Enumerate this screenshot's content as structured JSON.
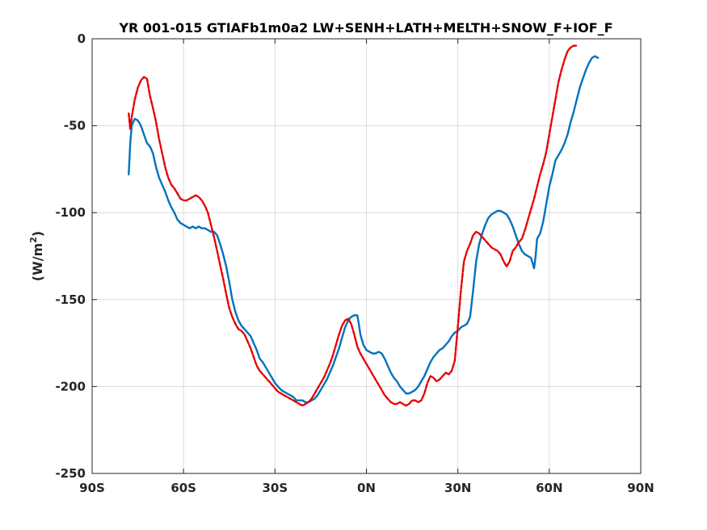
{
  "chart_data": {
    "type": "line",
    "title": "YR 001-015 GTIAFb1m0a2 LW+SENH+LATH+MELTH+SNOW_F+IOF_F",
    "ylabel_main": "(W/m",
    "ylabel_sup": "2",
    "ylabel_end": ")",
    "xlim": [
      -90,
      90
    ],
    "ylim": [
      -250,
      0
    ],
    "xticks": [
      {
        "value": -90,
        "label": "90S"
      },
      {
        "value": -60,
        "label": "60S"
      },
      {
        "value": -30,
        "label": "30S"
      },
      {
        "value": 0,
        "label": "0N"
      },
      {
        "value": 30,
        "label": "30N"
      },
      {
        "value": 60,
        "label": "60N"
      },
      {
        "value": 90,
        "label": "90N"
      }
    ],
    "yticks": [
      {
        "value": 0,
        "label": "0"
      },
      {
        "value": -50,
        "label": "-50"
      },
      {
        "value": -100,
        "label": "-100"
      },
      {
        "value": -150,
        "label": "-150"
      },
      {
        "value": -200,
        "label": "-200"
      },
      {
        "value": -250,
        "label": "-250"
      }
    ],
    "grid": true,
    "series": [
      {
        "color": "#0072bd",
        "style": "solid",
        "points": [
          [
            -78,
            -78
          ],
          [
            -77.5,
            -60
          ],
          [
            -77,
            -50
          ],
          [
            -76,
            -46
          ],
          [
            -75,
            -47
          ],
          [
            -74,
            -50
          ],
          [
            -73,
            -55
          ],
          [
            -72,
            -60
          ],
          [
            -71,
            -62
          ],
          [
            -70,
            -66
          ],
          [
            -69,
            -74
          ],
          [
            -68,
            -80
          ],
          [
            -67,
            -84
          ],
          [
            -66,
            -88
          ],
          [
            -65,
            -93
          ],
          [
            -64,
            -97
          ],
          [
            -63,
            -100
          ],
          [
            -62,
            -104
          ],
          [
            -61,
            -106
          ],
          [
            -60,
            -107
          ],
          [
            -59,
            -108
          ],
          [
            -58,
            -109
          ],
          [
            -57,
            -108
          ],
          [
            -56,
            -109
          ],
          [
            -55,
            -108
          ],
          [
            -54,
            -109
          ],
          [
            -53,
            -109
          ],
          [
            -52,
            -110
          ],
          [
            -51,
            -111
          ],
          [
            -50,
            -111
          ],
          [
            -49,
            -113
          ],
          [
            -48,
            -118
          ],
          [
            -47,
            -124
          ],
          [
            -46,
            -131
          ],
          [
            -45,
            -140
          ],
          [
            -44,
            -150
          ],
          [
            -43,
            -157
          ],
          [
            -42,
            -162
          ],
          [
            -41,
            -165
          ],
          [
            -40,
            -167
          ],
          [
            -39,
            -169
          ],
          [
            -38,
            -171
          ],
          [
            -37,
            -175
          ],
          [
            -36,
            -179
          ],
          [
            -35,
            -184
          ],
          [
            -34,
            -186
          ],
          [
            -33,
            -189
          ],
          [
            -32,
            -192
          ],
          [
            -31,
            -195
          ],
          [
            -30,
            -198
          ],
          [
            -29,
            -200
          ],
          [
            -28,
            -202
          ],
          [
            -27,
            -203
          ],
          [
            -26,
            -204
          ],
          [
            -25,
            -205
          ],
          [
            -24,
            -206
          ],
          [
            -23,
            -208
          ],
          [
            -22,
            -208
          ],
          [
            -21,
            -208
          ],
          [
            -20,
            -209
          ],
          [
            -19,
            -209
          ],
          [
            -18,
            -208
          ],
          [
            -17,
            -207
          ],
          [
            -16,
            -205
          ],
          [
            -15,
            -202
          ],
          [
            -14,
            -199
          ],
          [
            -13,
            -196
          ],
          [
            -12,
            -192
          ],
          [
            -11,
            -188
          ],
          [
            -10,
            -183
          ],
          [
            -9,
            -178
          ],
          [
            -8,
            -172
          ],
          [
            -7,
            -166
          ],
          [
            -6,
            -162
          ],
          [
            -5,
            -160
          ],
          [
            -4,
            -159
          ],
          [
            -3,
            -159
          ],
          [
            -2.5,
            -164
          ],
          [
            -2,
            -170
          ],
          [
            -1,
            -176
          ],
          [
            0,
            -179
          ],
          [
            1,
            -180
          ],
          [
            2,
            -181
          ],
          [
            3,
            -181
          ],
          [
            4,
            -180
          ],
          [
            5,
            -181
          ],
          [
            6,
            -184
          ],
          [
            7,
            -188
          ],
          [
            8,
            -192
          ],
          [
            9,
            -195
          ],
          [
            10,
            -197
          ],
          [
            11,
            -200
          ],
          [
            12,
            -202
          ],
          [
            13,
            -204
          ],
          [
            14,
            -204
          ],
          [
            15,
            -203
          ],
          [
            16,
            -202
          ],
          [
            17,
            -200
          ],
          [
            18,
            -197
          ],
          [
            19,
            -194
          ],
          [
            20,
            -190
          ],
          [
            21,
            -186
          ],
          [
            22,
            -183
          ],
          [
            23,
            -181
          ],
          [
            24,
            -179
          ],
          [
            25,
            -178
          ],
          [
            26,
            -176
          ],
          [
            27,
            -174
          ],
          [
            28,
            -171
          ],
          [
            29,
            -169
          ],
          [
            30,
            -168
          ],
          [
            31,
            -166
          ],
          [
            32,
            -165
          ],
          [
            33,
            -164
          ],
          [
            34,
            -160
          ],
          [
            35,
            -145
          ],
          [
            36,
            -128
          ],
          [
            37,
            -118
          ],
          [
            38,
            -112
          ],
          [
            39,
            -107
          ],
          [
            40,
            -103
          ],
          [
            41,
            -101
          ],
          [
            42,
            -100
          ],
          [
            43,
            -99
          ],
          [
            44,
            -99
          ],
          [
            45,
            -100
          ],
          [
            46,
            -101
          ],
          [
            47,
            -104
          ],
          [
            48,
            -108
          ],
          [
            49,
            -113
          ],
          [
            50,
            -118
          ],
          [
            51,
            -122
          ],
          [
            52,
            -124
          ],
          [
            53,
            -125
          ],
          [
            54,
            -126
          ],
          [
            55,
            -132
          ],
          [
            55.5,
            -125
          ],
          [
            56,
            -115
          ],
          [
            57,
            -112
          ],
          [
            58,
            -105
          ],
          [
            59,
            -95
          ],
          [
            60,
            -85
          ],
          [
            61,
            -78
          ],
          [
            62,
            -70
          ],
          [
            63,
            -67
          ],
          [
            64,
            -64
          ],
          [
            65,
            -60
          ],
          [
            66,
            -55
          ],
          [
            67,
            -48
          ],
          [
            68,
            -42
          ],
          [
            69,
            -35
          ],
          [
            70,
            -28
          ],
          [
            71,
            -23
          ],
          [
            72,
            -18
          ],
          [
            73,
            -14
          ],
          [
            74,
            -11
          ],
          [
            75,
            -10
          ],
          [
            76,
            -11
          ]
        ]
      },
      {
        "color": "#e60000",
        "style": "dashed",
        "points": [
          [
            -78,
            -43
          ],
          [
            -77.5,
            -52
          ],
          [
            -77,
            -45
          ],
          [
            -76,
            -35
          ],
          [
            -75,
            -28
          ],
          [
            -74,
            -24
          ],
          [
            -73,
            -22
          ],
          [
            -72,
            -23
          ],
          [
            -71,
            -33
          ],
          [
            -70,
            -40
          ],
          [
            -69,
            -48
          ],
          [
            -68,
            -58
          ],
          [
            -67,
            -66
          ],
          [
            -66,
            -74
          ],
          [
            -65,
            -80
          ],
          [
            -64,
            -84
          ],
          [
            -63,
            -86
          ],
          [
            -62,
            -89
          ],
          [
            -61,
            -92
          ],
          [
            -60,
            -93
          ],
          [
            -59,
            -93
          ],
          [
            -58,
            -92
          ],
          [
            -57,
            -91
          ],
          [
            -56,
            -90
          ],
          [
            -55,
            -91
          ],
          [
            -54,
            -93
          ],
          [
            -53,
            -96
          ],
          [
            -52,
            -100
          ],
          [
            -51,
            -107
          ],
          [
            -50,
            -114
          ],
          [
            -49,
            -122
          ],
          [
            -48,
            -130
          ],
          [
            -47,
            -138
          ],
          [
            -46,
            -147
          ],
          [
            -45,
            -155
          ],
          [
            -44,
            -160
          ],
          [
            -43,
            -164
          ],
          [
            -42,
            -167
          ],
          [
            -41,
            -168
          ],
          [
            -40,
            -170
          ],
          [
            -39,
            -174
          ],
          [
            -38,
            -178
          ],
          [
            -37,
            -183
          ],
          [
            -36,
            -188
          ],
          [
            -35,
            -191
          ],
          [
            -34,
            -193
          ],
          [
            -33,
            -195
          ],
          [
            -32,
            -197
          ],
          [
            -31,
            -199
          ],
          [
            -30,
            -201
          ],
          [
            -29,
            -203
          ],
          [
            -28,
            -204
          ],
          [
            -27,
            -205
          ],
          [
            -26,
            -206
          ],
          [
            -25,
            -207
          ],
          [
            -24,
            -208
          ],
          [
            -23,
            -209
          ],
          [
            -22,
            -210
          ],
          [
            -21,
            -211
          ],
          [
            -20,
            -210
          ],
          [
            -19,
            -209
          ],
          [
            -18,
            -207
          ],
          [
            -17,
            -204
          ],
          [
            -16,
            -201
          ],
          [
            -15,
            -198
          ],
          [
            -14,
            -195
          ],
          [
            -13,
            -191
          ],
          [
            -12,
            -187
          ],
          [
            -11,
            -182
          ],
          [
            -10,
            -176
          ],
          [
            -9,
            -170
          ],
          [
            -8,
            -165
          ],
          [
            -7,
            -162
          ],
          [
            -6,
            -161
          ],
          [
            -5,
            -164
          ],
          [
            -4,
            -170
          ],
          [
            -3,
            -177
          ],
          [
            -2,
            -181
          ],
          [
            -1,
            -184
          ],
          [
            0,
            -187
          ],
          [
            1,
            -190
          ],
          [
            2,
            -193
          ],
          [
            3,
            -196
          ],
          [
            4,
            -199
          ],
          [
            5,
            -202
          ],
          [
            6,
            -205
          ],
          [
            7,
            -207
          ],
          [
            8,
            -209
          ],
          [
            9,
            -210
          ],
          [
            10,
            -210
          ],
          [
            11,
            -209
          ],
          [
            12,
            -210
          ],
          [
            13,
            -211
          ],
          [
            14,
            -210
          ],
          [
            15,
            -208
          ],
          [
            16,
            -208
          ],
          [
            17,
            -209
          ],
          [
            18,
            -208
          ],
          [
            19,
            -204
          ],
          [
            20,
            -198
          ],
          [
            21,
            -194
          ],
          [
            22,
            -195
          ],
          [
            23,
            -197
          ],
          [
            24,
            -196
          ],
          [
            25,
            -194
          ],
          [
            26,
            -192
          ],
          [
            27,
            -193
          ],
          [
            28,
            -191
          ],
          [
            29,
            -185
          ],
          [
            30,
            -165
          ],
          [
            31,
            -145
          ],
          [
            32,
            -128
          ],
          [
            33,
            -122
          ],
          [
            34,
            -118
          ],
          [
            35,
            -113
          ],
          [
            36,
            -111
          ],
          [
            37,
            -112
          ],
          [
            38,
            -114
          ],
          [
            39,
            -116
          ],
          [
            40,
            -118
          ],
          [
            41,
            -120
          ],
          [
            42,
            -121
          ],
          [
            43,
            -122
          ],
          [
            44,
            -124
          ],
          [
            45,
            -128
          ],
          [
            46,
            -131
          ],
          [
            47,
            -128
          ],
          [
            48,
            -122
          ],
          [
            49,
            -120
          ],
          [
            50,
            -117
          ],
          [
            51,
            -115
          ],
          [
            52,
            -110
          ],
          [
            53,
            -104
          ],
          [
            54,
            -98
          ],
          [
            55,
            -92
          ],
          [
            56,
            -85
          ],
          [
            57,
            -78
          ],
          [
            58,
            -72
          ],
          [
            59,
            -65
          ],
          [
            60,
            -55
          ],
          [
            61,
            -45
          ],
          [
            62,
            -35
          ],
          [
            63,
            -25
          ],
          [
            64,
            -18
          ],
          [
            65,
            -12
          ],
          [
            66,
            -7
          ],
          [
            67,
            -5
          ],
          [
            68,
            -4
          ],
          [
            69,
            -4
          ]
        ]
      }
    ]
  }
}
